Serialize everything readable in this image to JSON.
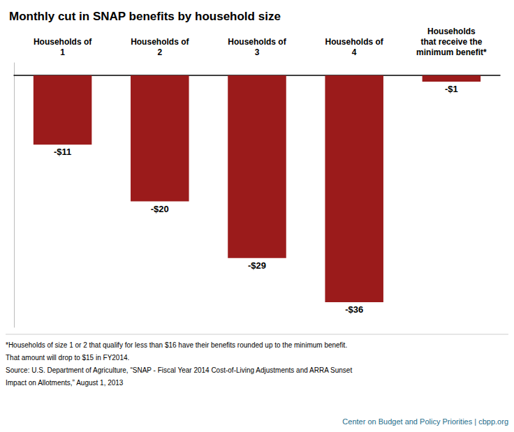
{
  "chart_data": {
    "type": "bar",
    "title": "Monthly cut in SNAP benefits by household size",
    "categories": [
      "Households of\n1",
      "Households of\n2",
      "Households of\n3",
      "Households of\n4",
      "Households\nthat receive the\nminimum benefit*"
    ],
    "values": [
      -11,
      -20,
      -29,
      -36,
      -1
    ],
    "value_labels": [
      "-$11",
      "-$20",
      "-$29",
      "-$36",
      "-$1"
    ],
    "data_labels": true,
    "color": "#9B1B1B",
    "ylim": [
      -40,
      2
    ],
    "tick_labels": false,
    "grid": false,
    "annotations": [
      {
        "text": "*Households of size 1 or 2 that qualify for less than $16 have their benefits rounded up to the minimum benefit."
      },
      {
        "text": "That amount will drop to $15 in FY2014."
      },
      {
        "text": "Source: U.S. Department of Agriculture, “SNAP - Fiscal Year 2014 Cost-of-Living Adjustments and ARRA Sunset"
      },
      {
        "text": "Impact on Allotments,” August 1, 2013"
      },
      {
        "text": "Center on Budget and Policy Priorities | cbpp.org",
        "color": "#1F6E8C"
      }
    ]
  }
}
